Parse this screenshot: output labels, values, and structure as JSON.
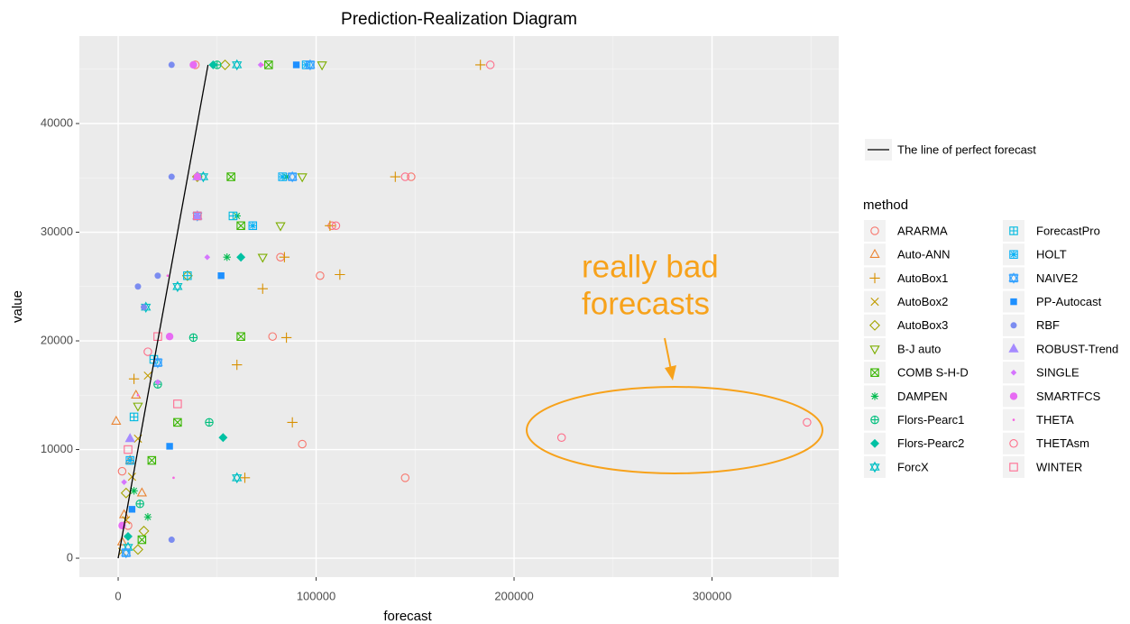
{
  "chart_data": {
    "type": "scatter",
    "title": "Prediction-Realization Diagram",
    "x_label": "forecast",
    "y_label": "value",
    "xlim": [
      -19600,
      364000
    ],
    "ylim": [
      -1740,
      48050
    ],
    "xticks": [
      0,
      100000,
      200000,
      300000
    ],
    "yticks": [
      0,
      10000,
      20000,
      30000,
      40000
    ],
    "grid": true,
    "legend_position": "right",
    "legend_title": "method",
    "reference_line": {
      "name": "The line of perfect forecast",
      "color": "#000000",
      "x": [
        0,
        45400
      ],
      "y": [
        0,
        45400
      ]
    },
    "annotation": {
      "lines": [
        "really bad",
        "forecasts"
      ],
      "color": "#F7A21B"
    },
    "series": [
      {
        "name": "ARARMA",
        "color": "#F8766D",
        "shape": "circle-open",
        "x": [
          39000,
          148000,
          108000,
          82000,
          102000,
          78000,
          93000,
          145000,
          5000,
          2000
        ],
        "values": [
          45400,
          35100,
          30600,
          27700,
          26000,
          20400,
          10500,
          7400,
          3000,
          8000
        ]
      },
      {
        "name": "Auto-ANN",
        "color": "#EA8331",
        "shape": "triangle-open",
        "x": [
          -1000,
          3000,
          6000,
          9000,
          2000,
          12000
        ],
        "values": [
          12600,
          4000,
          9000,
          15000,
          1500,
          6000
        ]
      },
      {
        "name": "AutoBox1",
        "color": "#D89000",
        "shape": "plus",
        "x": [
          183000,
          140000,
          107000,
          84000,
          112000,
          73000,
          85000,
          88000,
          64000,
          60000,
          8000
        ],
        "values": [
          45400,
          35100,
          30600,
          27700,
          26100,
          24800,
          20300,
          12500,
          7400,
          17800,
          16500
        ]
      },
      {
        "name": "AutoBox2",
        "color": "#C09B00",
        "shape": "cross",
        "x": [
          4000,
          7000,
          10000,
          15000,
          2000
        ],
        "values": [
          3500,
          7500,
          11000,
          16800,
          600
        ]
      },
      {
        "name": "AutoBox3",
        "color": "#A3A500",
        "shape": "diamond-open",
        "x": [
          54000,
          40000,
          35000,
          13000,
          10000,
          4000
        ],
        "values": [
          45400,
          35100,
          26000,
          2500,
          800,
          6000
        ]
      },
      {
        "name": "B-J auto",
        "color": "#7CAE00",
        "shape": "triangle-down-open",
        "x": [
          103000,
          93000,
          82000,
          73000,
          10000
        ],
        "values": [
          45400,
          35100,
          30600,
          27700,
          14000
        ]
      },
      {
        "name": "COMB S-H-D",
        "color": "#39B600",
        "shape": "square-x",
        "x": [
          76000,
          57000,
          62000,
          62000,
          30000,
          12000,
          17000
        ],
        "values": [
          45400,
          35100,
          30600,
          20400,
          12500,
          1700,
          9000
        ]
      },
      {
        "name": "DAMPEN",
        "color": "#00BB4E",
        "shape": "asterisk",
        "x": [
          85000,
          60000,
          55000,
          15000,
          8000
        ],
        "values": [
          35100,
          31500,
          27700,
          3800,
          6200
        ]
      },
      {
        "name": "Flors-Pearc1",
        "color": "#00BF7D",
        "shape": "circle-plus",
        "x": [
          50000,
          38000,
          20000,
          46000,
          11000
        ],
        "values": [
          45400,
          20300,
          16000,
          12500,
          5000
        ]
      },
      {
        "name": "Flors-Pearc2",
        "color": "#00C1A3",
        "shape": "diamond-filled",
        "x": [
          48000,
          62000,
          53000,
          5000
        ],
        "values": [
          45400,
          27700,
          11100,
          2000
        ]
      },
      {
        "name": "ForcX",
        "color": "#00BFC4",
        "shape": "hexagram",
        "x": [
          60000,
          43000,
          30000,
          14000,
          60000,
          5000
        ],
        "values": [
          45400,
          35100,
          25000,
          23100,
          7400,
          1000
        ]
      },
      {
        "name": "ForecastPro",
        "color": "#00BAE0",
        "shape": "square-plus",
        "x": [
          58000,
          35000,
          18000,
          8000
        ],
        "values": [
          31500,
          26000,
          18300,
          13000
        ]
      },
      {
        "name": "HOLT",
        "color": "#00B0F6",
        "shape": "square-star",
        "x": [
          95000,
          83000,
          68000,
          6000
        ],
        "values": [
          45400,
          35100,
          30600,
          9000
        ]
      },
      {
        "name": "NAIVE2",
        "color": "#35A2FF",
        "shape": "square-hex",
        "x": [
          97000,
          88000,
          40000,
          20000,
          4000
        ],
        "values": [
          45400,
          35100,
          31500,
          18000,
          500
        ]
      },
      {
        "name": "PP-Autocast",
        "color": "#1E90FF",
        "shape": "square-filled",
        "x": [
          90000,
          52000,
          26000,
          7000
        ],
        "values": [
          45400,
          26000,
          10300,
          4500
        ]
      },
      {
        "name": "RBF",
        "color": "#7B8CF0",
        "shape": "circle-filled",
        "x": [
          27000,
          27000,
          20000,
          10000,
          13000,
          27000
        ],
        "values": [
          45400,
          35100,
          26000,
          25000,
          23100,
          1700
        ]
      },
      {
        "name": "ROBUST-Trend",
        "color": "#A58AFF",
        "shape": "triangle-filled",
        "x": [
          40000,
          40000,
          6000
        ],
        "values": [
          35100,
          31500,
          11000
        ]
      },
      {
        "name": "SINGLE",
        "color": "#D575FE",
        "shape": "diamond-small",
        "x": [
          72000,
          45000,
          20000,
          3000
        ],
        "values": [
          45400,
          27700,
          16200,
          7000
        ]
      },
      {
        "name": "SMARTFCS",
        "color": "#E76BF3",
        "shape": "circle-big",
        "x": [
          38000,
          40000,
          26000,
          2000
        ],
        "values": [
          45400,
          35100,
          20400,
          3000
        ]
      },
      {
        "name": "THETA",
        "color": "#F763E0",
        "shape": "dot",
        "x": [
          73000,
          25000,
          28000,
          10000
        ],
        "values": [
          45400,
          26000,
          7400,
          15000
        ]
      },
      {
        "name": "THETAsm",
        "color": "#FE6E8A",
        "shape": "circle-open",
        "x": [
          188000,
          145000,
          110000,
          224000,
          348000,
          15000
        ],
        "values": [
          45400,
          35100,
          30600,
          11100,
          12500,
          19000
        ]
      },
      {
        "name": "WINTER",
        "color": "#FF6C91",
        "shape": "square-open",
        "x": [
          40000,
          20000,
          30000,
          5000
        ],
        "values": [
          31500,
          20400,
          14200,
          10000
        ]
      }
    ]
  }
}
